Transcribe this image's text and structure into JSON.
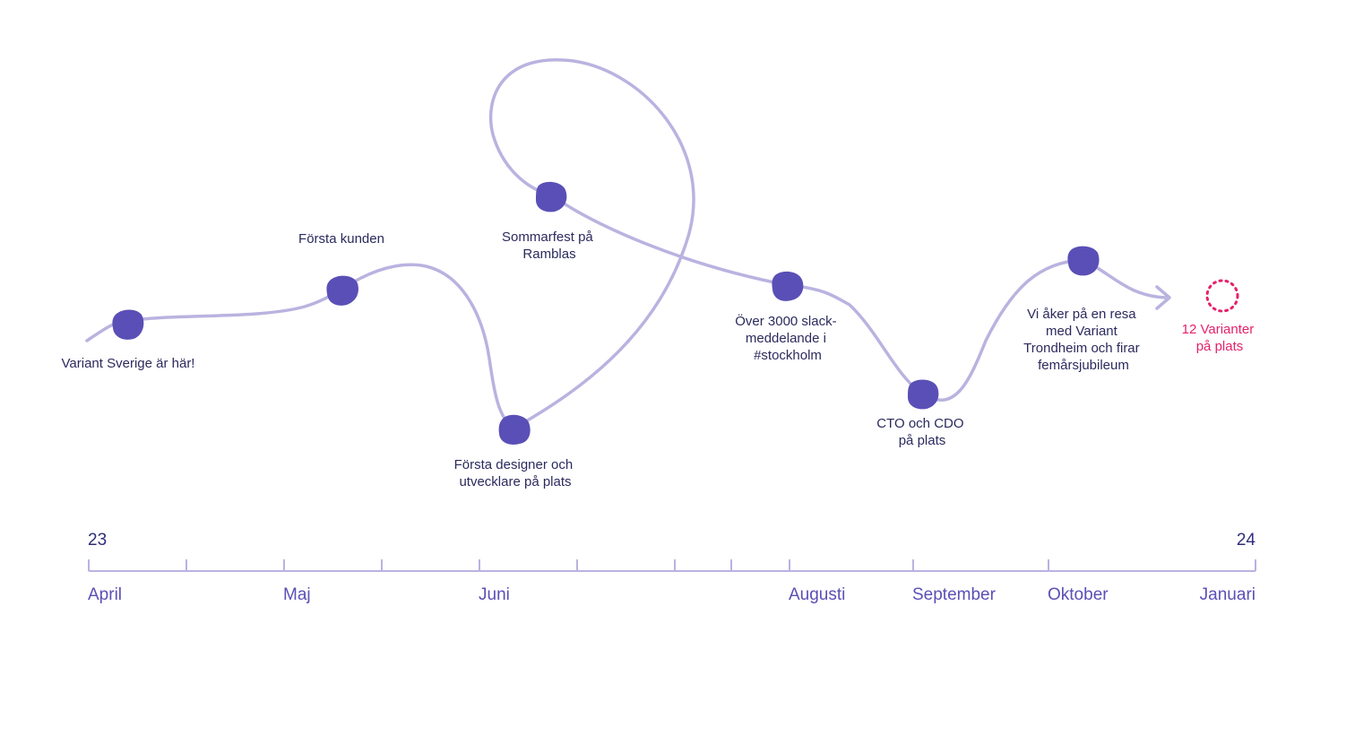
{
  "colors": {
    "path": "#b9b3e0",
    "milestone_dot": "#5a4fb6",
    "milestone_text": "#2b2a5e",
    "future_marker": "#e4226a",
    "axis": "#b9b3e0",
    "year_text": "#2f2d7a",
    "month_text": "#5a4fb6"
  },
  "milestones": [
    {
      "id": "variant-sverige",
      "lines": [
        "Variant Sverige är här!"
      ]
    },
    {
      "id": "forsta-kunden",
      "lines": [
        "Första kunden"
      ]
    },
    {
      "id": "forsta-designer",
      "lines": [
        "Första designer och",
        "utvecklare på plats"
      ]
    },
    {
      "id": "sommarfest",
      "lines": [
        "Sommarfest på",
        "Ramblas"
      ]
    },
    {
      "id": "slack",
      "lines": [
        "Över 3000 slack-",
        "meddelande i",
        "#stockholm"
      ]
    },
    {
      "id": "cto-cdo",
      "lines": [
        "CTO och CDO",
        "på plats"
      ]
    },
    {
      "id": "resa",
      "lines": [
        "Vi åker på en resa",
        "med Variant",
        "Trondheim och firar",
        "femårsjubileum"
      ]
    }
  ],
  "future": {
    "lines": [
      "12 Varianter",
      "på plats"
    ],
    "icon": "dotted-circle-icon"
  },
  "axis": {
    "start_year": "23",
    "end_year": "24",
    "months": [
      "April",
      "Maj",
      "Juni",
      "Augusti",
      "September",
      "Oktober",
      "Januari"
    ]
  }
}
